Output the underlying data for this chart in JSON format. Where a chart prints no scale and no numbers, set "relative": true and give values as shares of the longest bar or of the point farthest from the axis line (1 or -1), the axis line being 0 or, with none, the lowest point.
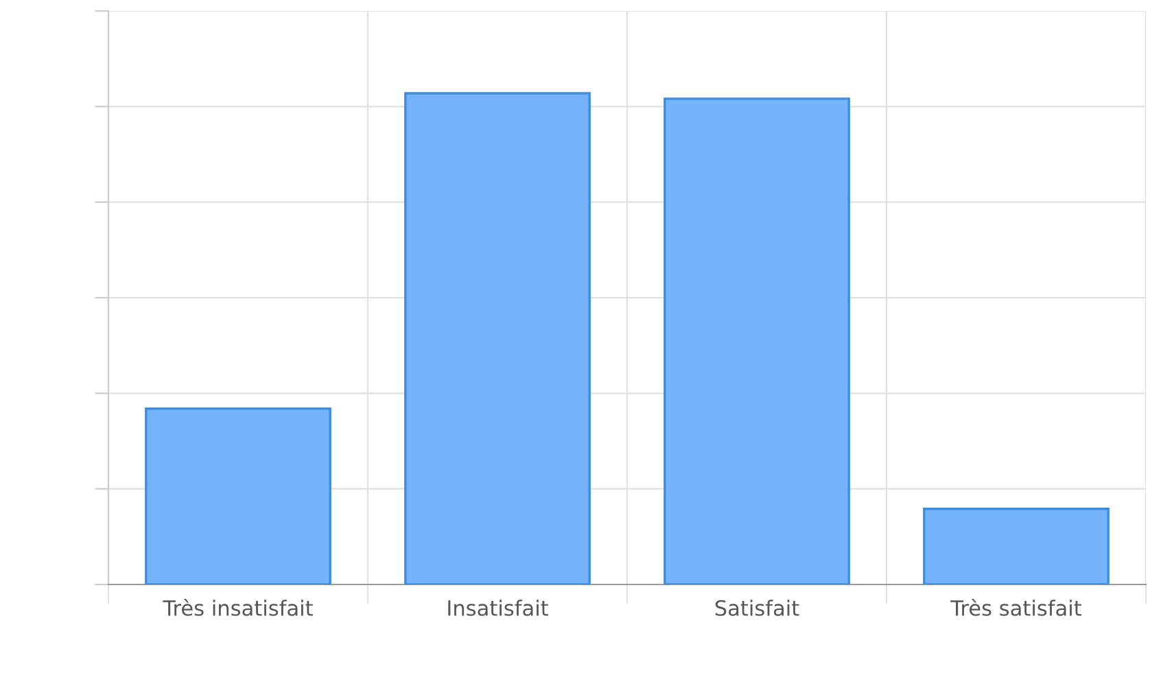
{
  "chart_data": {
    "type": "bar",
    "relative": true,
    "categories": [
      "Très insatisfait",
      "Insatisfait",
      "Satisfait",
      "Très satisfait"
    ],
    "values": [
      0.358,
      1,
      0.989,
      0.154
    ],
    "color": "#75b4fd",
    "grid": true,
    "tick_labels": "x"
  }
}
